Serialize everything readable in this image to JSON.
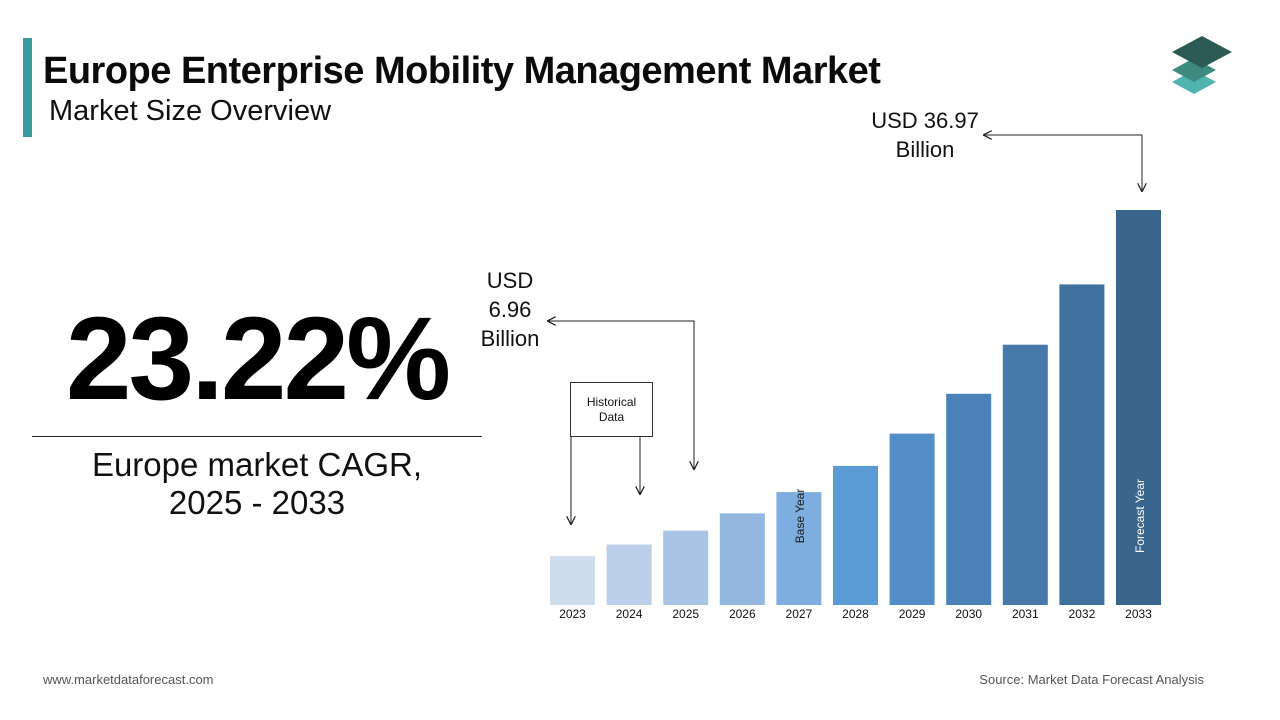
{
  "header": {
    "title": "Europe Enterprise Mobility Management Market",
    "subtitle": "Market Size Overview"
  },
  "highlight": {
    "cagr_value": "23.22%",
    "caption_line1": "Europe market CAGR,",
    "caption_line2": "2025 - 2033"
  },
  "annotations": {
    "historical_line1": "Historical",
    "historical_line2": "Data",
    "base_year": "Base Year",
    "forecast_year": "Forecast Year",
    "callout_2025_line1": "USD",
    "callout_2025_line2": "6.96",
    "callout_2025_line3": "Billion",
    "callout_2033_line1": "USD 36.97",
    "callout_2033_line2": "Billion"
  },
  "footer": {
    "website": "www.marketdataforecast.com",
    "source": "Source: Market Data Forecast Analysis"
  },
  "colors": {
    "accent": "#3a9c9b",
    "logo_top": "#2c5a55",
    "logo_mid": "#3f8a7f",
    "logo_bottom": "#4fb3b0"
  },
  "chart_data": {
    "type": "bar",
    "categories": [
      "2023",
      "2024",
      "2025",
      "2026",
      "2027",
      "2028",
      "2029",
      "2030",
      "2031",
      "2032",
      "2033"
    ],
    "values": [
      4.6,
      5.66,
      6.96,
      8.58,
      10.57,
      13.02,
      16.04,
      19.77,
      24.36,
      30.01,
      36.97
    ],
    "colors": [
      "#cfdcec",
      "#bccfe8",
      "#a9c4e4",
      "#93b7df",
      "#7eaedf",
      "#5b9bd5",
      "#548ec8",
      "#4b83b8",
      "#4679aa",
      "#40709d",
      "#3a668e"
    ],
    "ylim": [
      0,
      40
    ],
    "grid": false,
    "legend": "none"
  }
}
